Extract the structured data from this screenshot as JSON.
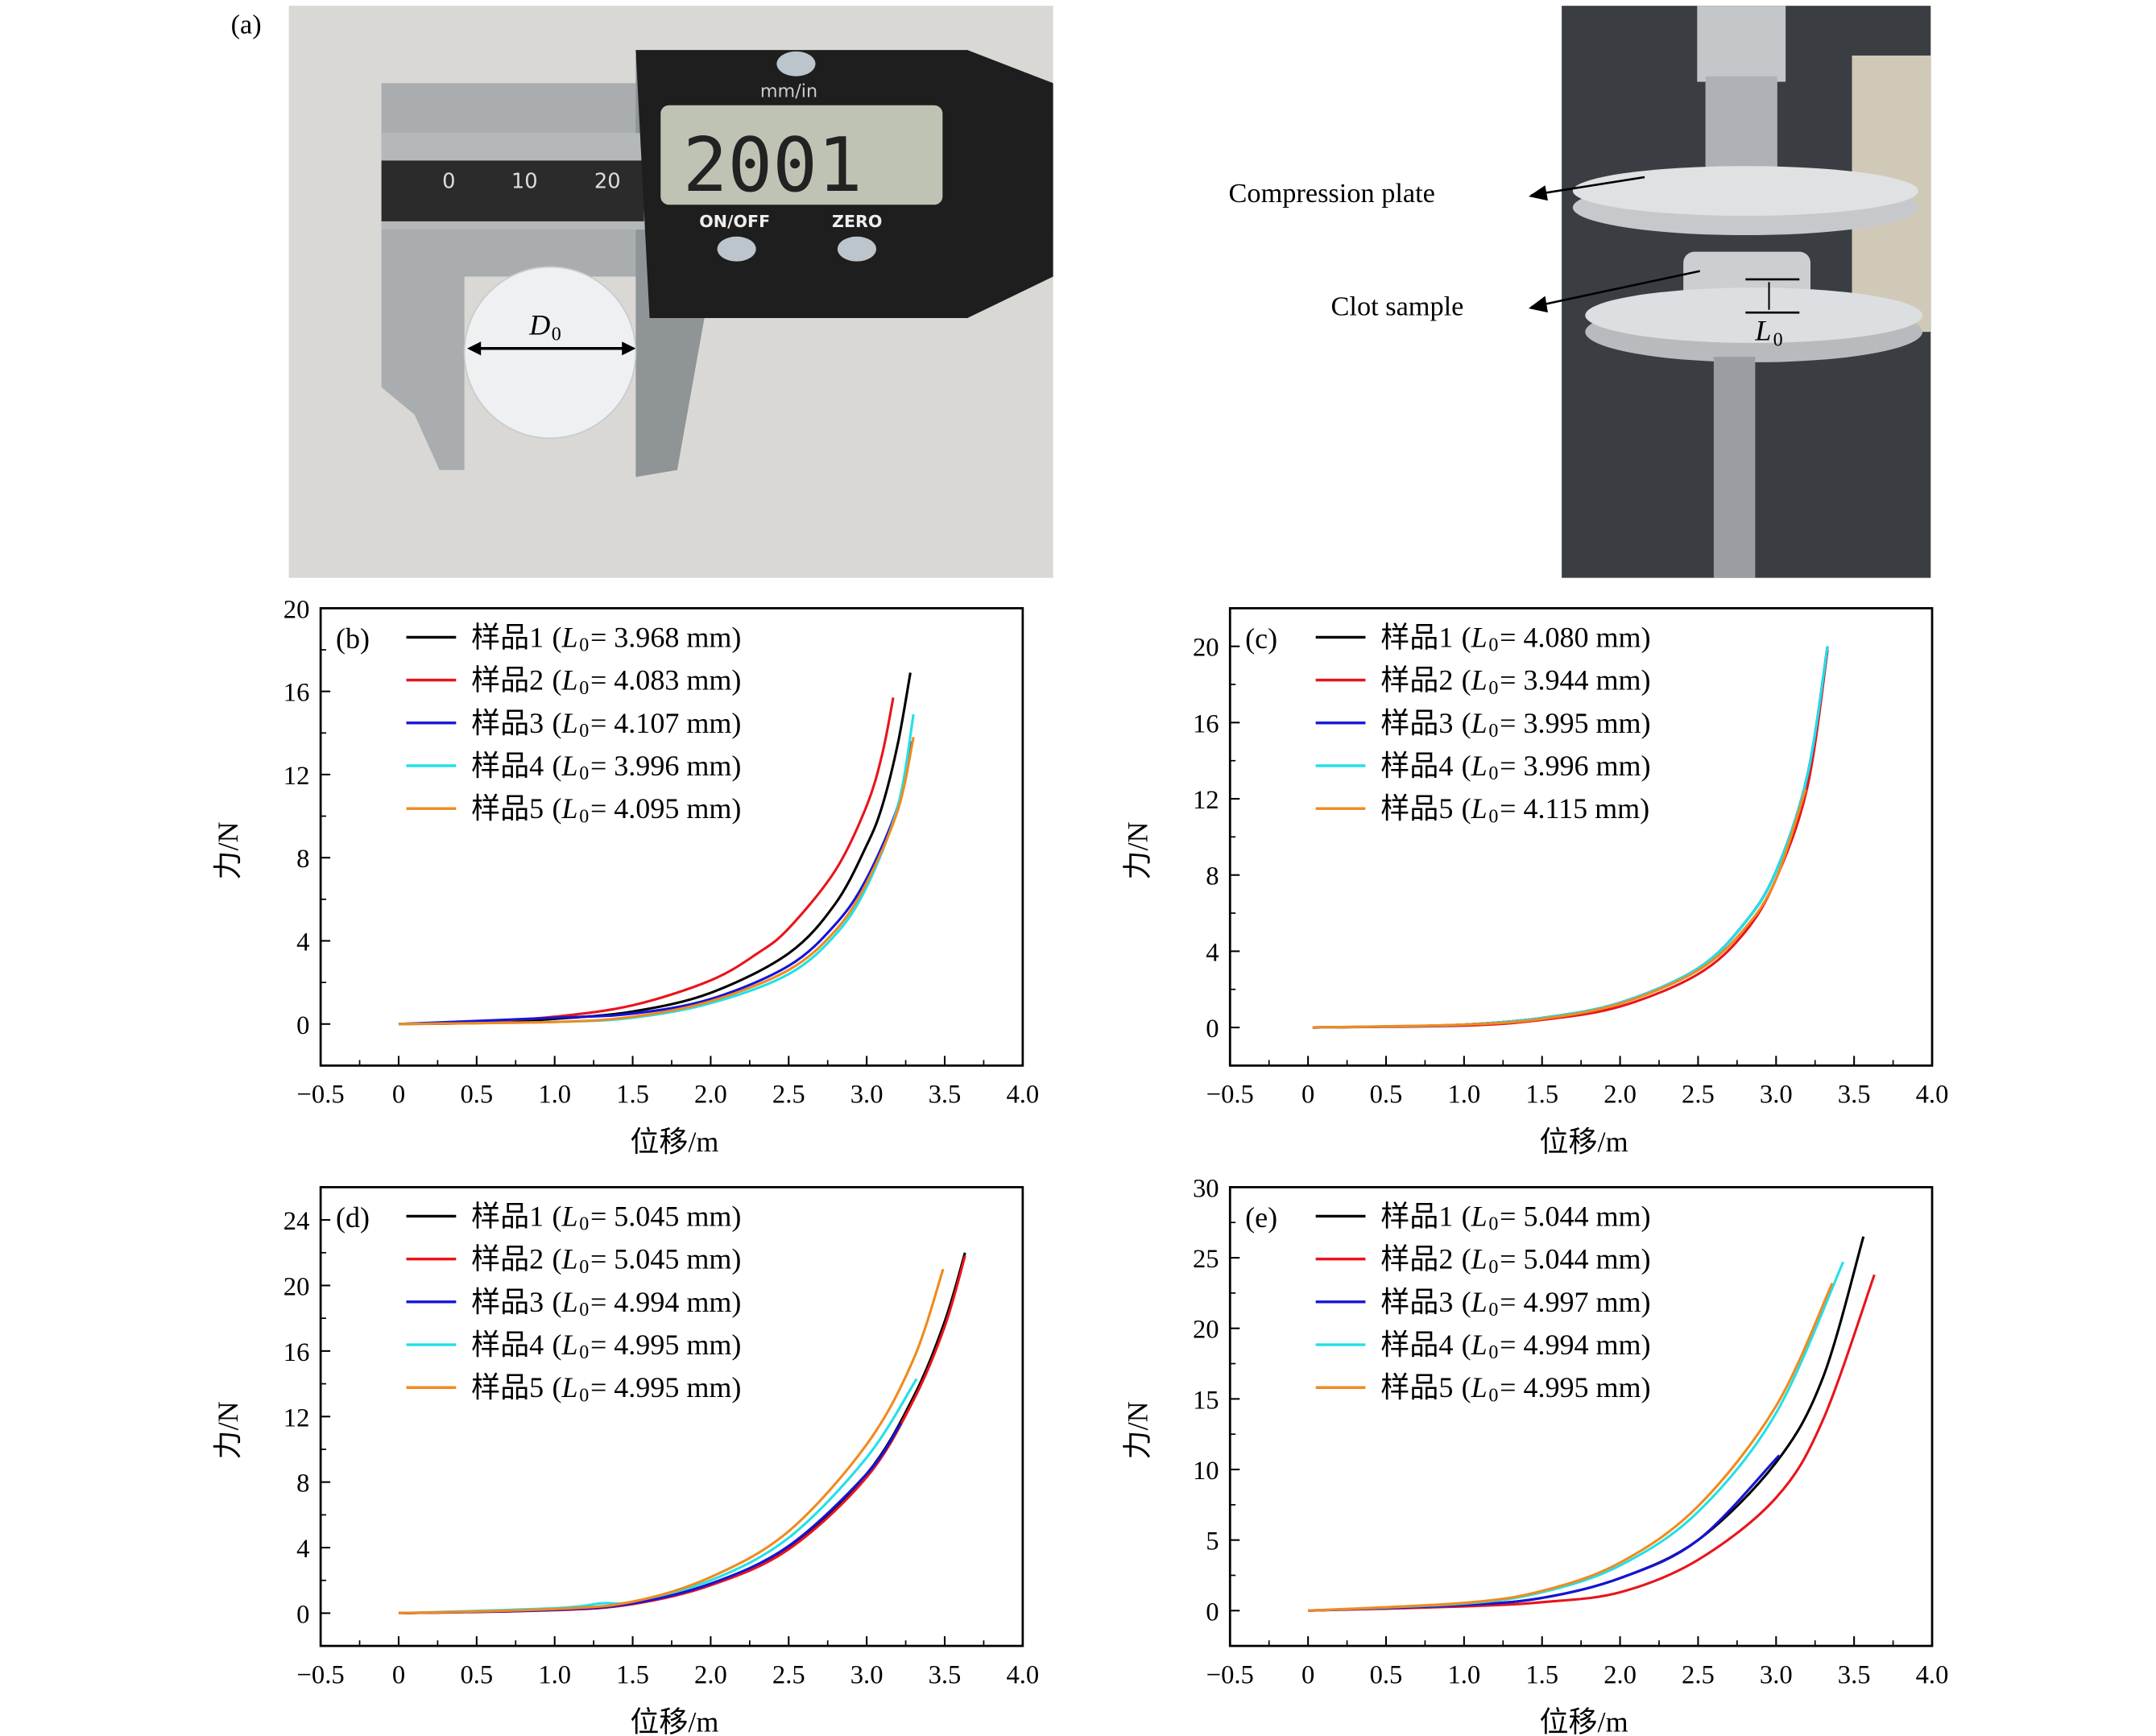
{
  "panel_a": {
    "label": "(a)",
    "caliper": {
      "unit_label": "mm/in",
      "display": "2001",
      "on_off": "ON/OFF",
      "zero": "ZERO",
      "scale_labels": [
        "0",
        "10",
        "20"
      ]
    },
    "diameter_label": "D",
    "diameter_sub": "0",
    "compression_plate": "Compression plate",
    "clot_sample": "Clot sample",
    "height_label": "L",
    "height_sub": "0"
  },
  "chart_data": [
    {
      "type": "line",
      "panel": "(b)",
      "xlabel": "位移/m",
      "ylabel": "力/N",
      "xlim": [
        -0.5,
        4.0
      ],
      "ylim": [
        -2,
        20
      ],
      "xticks": [
        "−0.5",
        "0",
        "0.5",
        "1.0",
        "1.5",
        "2.0",
        "2.5",
        "3.0",
        "3.5",
        "4.0"
      ],
      "yticks": [
        0,
        4,
        8,
        12,
        16,
        20
      ],
      "grid": false,
      "legend": "top-left",
      "series": [
        {
          "name": "样品1",
          "L0": "3.968 mm",
          "color": "#000000",
          "points": [
            [
              0,
              0
            ],
            [
              0.5,
              0.05
            ],
            [
              1.0,
              0.25
            ],
            [
              1.5,
              0.6
            ],
            [
              2.0,
              1.5
            ],
            [
              2.5,
              3.4
            ],
            [
              2.8,
              5.8
            ],
            [
              3.0,
              8.6
            ],
            [
              3.1,
              10.5
            ],
            [
              3.2,
              13.5
            ],
            [
              3.28,
              16.9
            ]
          ]
        },
        {
          "name": "样品2",
          "L0": "4.083 mm",
          "color": "#e8141c",
          "points": [
            [
              0,
              0
            ],
            [
              0.5,
              0.1
            ],
            [
              1.0,
              0.35
            ],
            [
              1.5,
              0.9
            ],
            [
              2.0,
              2.1
            ],
            [
              2.3,
              3.4
            ],
            [
              2.5,
              4.6
            ],
            [
              2.8,
              7.4
            ],
            [
              3.0,
              10.5
            ],
            [
              3.1,
              13.0
            ],
            [
              3.17,
              15.7
            ]
          ]
        },
        {
          "name": "样品3",
          "L0": "4.107 mm",
          "color": "#1414d8",
          "points": [
            [
              0,
              0
            ],
            [
              1.0,
              0.3
            ],
            [
              1.5,
              0.5
            ],
            [
              2.0,
              1.2
            ],
            [
              2.5,
              2.8
            ],
            [
              2.8,
              4.8
            ],
            [
              3.0,
              7.0
            ],
            [
              3.2,
              10.5
            ],
            [
              3.28,
              13.6
            ]
          ]
        },
        {
          "name": "样品4",
          "L0": "3.996 mm",
          "color": "#22e0e8",
          "points": [
            [
              0,
              0
            ],
            [
              1.0,
              0.1
            ],
            [
              1.5,
              0.3
            ],
            [
              2.0,
              1.0
            ],
            [
              2.5,
              2.4
            ],
            [
              2.8,
              4.3
            ],
            [
              3.0,
              6.6
            ],
            [
              3.2,
              10.5
            ],
            [
              3.3,
              14.9
            ]
          ]
        },
        {
          "name": "样品5",
          "L0": "4.095 mm",
          "color": "#f08a1e",
          "points": [
            [
              0,
              0
            ],
            [
              1.0,
              0.1
            ],
            [
              1.5,
              0.35
            ],
            [
              2.0,
              1.1
            ],
            [
              2.5,
              2.6
            ],
            [
              2.8,
              4.5
            ],
            [
              3.0,
              6.8
            ],
            [
              3.2,
              10.3
            ],
            [
              3.3,
              13.8
            ]
          ]
        }
      ]
    },
    {
      "type": "line",
      "panel": "(c)",
      "xlabel": "位移/m",
      "ylabel": "力/N",
      "xlim": [
        -0.5,
        4.0
      ],
      "ylim": [
        -2,
        22
      ],
      "xticks": [
        "−0.5",
        "0",
        "0.5",
        "1.0",
        "1.5",
        "2.0",
        "2.5",
        "3.0",
        "3.5",
        "4.0"
      ],
      "yticks": [
        0,
        4,
        8,
        12,
        16,
        20
      ],
      "grid": false,
      "legend": "top-left",
      "series": [
        {
          "name": "样品1",
          "L0": "4.080 mm",
          "color": "#000000",
          "points": [
            [
              0.03,
              0
            ],
            [
              0.5,
              0.05
            ],
            [
              1.0,
              0.15
            ],
            [
              1.5,
              0.5
            ],
            [
              2.0,
              1.3
            ],
            [
              2.5,
              3.1
            ],
            [
              2.8,
              5.5
            ],
            [
              3.0,
              8.2
            ],
            [
              3.2,
              13.2
            ],
            [
              3.33,
              20
            ]
          ]
        },
        {
          "name": "样品2",
          "L0": "3.944 mm",
          "color": "#e8141c",
          "points": [
            [
              0.03,
              0
            ],
            [
              1.0,
              0.1
            ],
            [
              1.5,
              0.4
            ],
            [
              2.0,
              1.1
            ],
            [
              2.5,
              2.8
            ],
            [
              2.8,
              5.0
            ],
            [
              3.0,
              7.8
            ],
            [
              3.2,
              12.6
            ],
            [
              3.33,
              19.8
            ]
          ]
        },
        {
          "name": "样品3",
          "L0": "3.995 mm",
          "color": "#1414d8",
          "points": [
            [
              0.03,
              0
            ],
            [
              0.5,
              0.05
            ],
            [
              1.0,
              0.15
            ],
            [
              1.5,
              0.5
            ],
            [
              2.0,
              1.3
            ],
            [
              2.5,
              3.1
            ],
            [
              2.8,
              5.5
            ],
            [
              3.0,
              8.2
            ],
            [
              3.2,
              13.2
            ],
            [
              3.33,
              20
            ]
          ]
        },
        {
          "name": "样品4",
          "L0": "3.996 mm",
          "color": "#22e0e8",
          "points": [
            [
              0.03,
              0
            ],
            [
              0.5,
              0.05
            ],
            [
              1.0,
              0.15
            ],
            [
              1.5,
              0.5
            ],
            [
              2.0,
              1.3
            ],
            [
              2.5,
              3.1
            ],
            [
              2.8,
              5.5
            ],
            [
              3.0,
              8.2
            ],
            [
              3.2,
              13.2
            ],
            [
              3.33,
              20
            ]
          ]
        },
        {
          "name": "样品5",
          "L0": "4.115 mm",
          "color": "#f08a1e",
          "points": [
            [
              0.03,
              0
            ],
            [
              1.0,
              0.15
            ],
            [
              1.5,
              0.45
            ],
            [
              2.0,
              1.25
            ],
            [
              2.5,
              3.0
            ],
            [
              2.8,
              5.2
            ],
            [
              3.0,
              7.8
            ],
            [
              3.19,
              12.5
            ]
          ]
        }
      ]
    },
    {
      "type": "line",
      "panel": "(d)",
      "xlabel": "位移/m",
      "ylabel": "力/N",
      "xlim": [
        -0.5,
        4.0
      ],
      "ylim": [
        -2,
        26
      ],
      "xticks": [
        "−0.5",
        "0",
        "0.5",
        "1.0",
        "1.5",
        "2.0",
        "2.5",
        "3.0",
        "3.5",
        "4.0"
      ],
      "yticks": [
        0,
        4,
        8,
        12,
        16,
        20,
        24
      ],
      "grid": false,
      "legend": "top-left",
      "series": [
        {
          "name": "样品1",
          "L0": "5.045 mm",
          "color": "#000000",
          "points": [
            [
              0,
              0
            ],
            [
              1.0,
              0.2
            ],
            [
              1.5,
              0.6
            ],
            [
              2.0,
              1.8
            ],
            [
              2.5,
              4.0
            ],
            [
              3.0,
              8.5
            ],
            [
              3.3,
              13.2
            ],
            [
              3.5,
              17.8
            ],
            [
              3.63,
              22
            ]
          ]
        },
        {
          "name": "样品2",
          "L0": "5.045 mm",
          "color": "#e8141c",
          "points": [
            [
              0,
              0
            ],
            [
              1.0,
              0.18
            ],
            [
              1.5,
              0.55
            ],
            [
              2.0,
              1.7
            ],
            [
              2.5,
              3.9
            ],
            [
              3.0,
              8.3
            ],
            [
              3.3,
              13.0
            ],
            [
              3.5,
              17.5
            ],
            [
              3.63,
              21.8
            ]
          ]
        },
        {
          "name": "样品3",
          "L0": "4.994 mm",
          "color": "#1414d8",
          "points": [
            [
              0,
              0
            ],
            [
              1.0,
              0.2
            ],
            [
              1.5,
              0.6
            ],
            [
              2.0,
              1.8
            ],
            [
              2.5,
              4.1
            ],
            [
              3.0,
              8.5
            ],
            [
              3.22,
              11.6
            ]
          ]
        },
        {
          "name": "样品4",
          "L0": "4.995 mm",
          "color": "#22e0e8",
          "points": [
            [
              0,
              0
            ],
            [
              1.0,
              0.3
            ],
            [
              1.3,
              0.6
            ],
            [
              1.5,
              0.7
            ],
            [
              2.0,
              2.0
            ],
            [
              2.5,
              4.6
            ],
            [
              3.0,
              9.5
            ],
            [
              3.32,
              14.3
            ]
          ]
        },
        {
          "name": "样品5",
          "L0": "4.995 mm",
          "color": "#f08a1e",
          "points": [
            [
              0,
              0
            ],
            [
              1.0,
              0.25
            ],
            [
              1.5,
              0.7
            ],
            [
              2.0,
              2.2
            ],
            [
              2.5,
              5.0
            ],
            [
              3.0,
              10.3
            ],
            [
              3.3,
              15.5
            ],
            [
              3.49,
              21
            ]
          ]
        }
      ]
    },
    {
      "type": "line",
      "panel": "(e)",
      "xlabel": "位移/m",
      "ylabel": "力/N",
      "xlim": [
        -0.5,
        4.0
      ],
      "ylim": [
        -2.5,
        30
      ],
      "xticks": [
        "−0.5",
        "0",
        "0.5",
        "1.0",
        "1.5",
        "2.0",
        "2.5",
        "3.0",
        "3.5",
        "4.0"
      ],
      "yticks": [
        0,
        5,
        10,
        15,
        20,
        25,
        30
      ],
      "grid": false,
      "legend": "top-left",
      "series": [
        {
          "name": "样品1",
          "L0": "5.044 mm",
          "color": "#000000",
          "points": [
            [
              0,
              0
            ],
            [
              1.0,
              0.4
            ],
            [
              1.5,
              0.9
            ],
            [
              2.0,
              2.3
            ],
            [
              2.5,
              5.0
            ],
            [
              3.0,
              10.5
            ],
            [
              3.3,
              16.5
            ],
            [
              3.56,
              26.5
            ]
          ]
        },
        {
          "name": "样品2",
          "L0": "5.044 mm",
          "color": "#e8141c",
          "points": [
            [
              0,
              0
            ],
            [
              1.0,
              0.3
            ],
            [
              1.5,
              0.6
            ],
            [
              2.0,
              1.3
            ],
            [
              2.5,
              3.6
            ],
            [
              3.0,
              8.0
            ],
            [
              3.3,
              13.5
            ],
            [
              3.63,
              23.8
            ]
          ]
        },
        {
          "name": "样品3",
          "L0": "4.997 mm",
          "color": "#1414d8",
          "points": [
            [
              0,
              0
            ],
            [
              1.0,
              0.4
            ],
            [
              1.5,
              0.9
            ],
            [
              2.0,
              2.3
            ],
            [
              2.5,
              5.0
            ],
            [
              3.02,
              11
            ]
          ]
        },
        {
          "name": "样品4",
          "L0": "4.994 mm",
          "color": "#22e0e8",
          "points": [
            [
              0,
              0
            ],
            [
              1.0,
              0.5
            ],
            [
              1.5,
              1.3
            ],
            [
              2.0,
              3.2
            ],
            [
              2.5,
              7.0
            ],
            [
              3.0,
              14.0
            ],
            [
              3.43,
              24.7
            ]
          ]
        },
        {
          "name": "样品5",
          "L0": "4.995 mm",
          "color": "#f08a1e",
          "points": [
            [
              0,
              0
            ],
            [
              1.0,
              0.55
            ],
            [
              1.5,
              1.4
            ],
            [
              2.0,
              3.4
            ],
            [
              2.5,
              7.4
            ],
            [
              3.0,
              14.5
            ],
            [
              3.36,
              23.2
            ]
          ]
        }
      ]
    }
  ]
}
